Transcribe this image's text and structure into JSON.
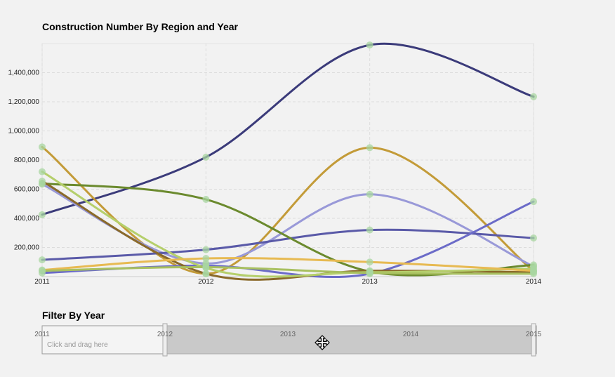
{
  "chart_title": "Construction Number By Region and Year",
  "filter_title": "Filter By Year",
  "filter": {
    "hint": "Click and drag here",
    "ticks": [
      "2011",
      "2012",
      "2013",
      "2014",
      "2015"
    ],
    "selected_range": [
      "2012",
      "2015"
    ]
  },
  "chart_data": {
    "type": "line",
    "title": "Construction Number By Region and Year",
    "xlabel": "",
    "ylabel": "",
    "x": [
      "2011",
      "2012",
      "2013",
      "2014"
    ],
    "ylim": [
      0,
      1600000
    ],
    "y_ticks": [
      200000,
      400000,
      600000,
      800000,
      1000000,
      1200000,
      1400000
    ],
    "y_tick_labels": [
      "200,000",
      "400,000",
      "600,000",
      "800,000",
      "1,000,000",
      "1,200,000",
      "1,400,000"
    ],
    "grid": true,
    "series": [
      {
        "color": "#3b3b7a",
        "values": [
          425000,
          820000,
          1590000,
          1235000
        ]
      },
      {
        "color": "#c39b38",
        "values": [
          890000,
          20000,
          885000,
          40000
        ]
      },
      {
        "color": "#9999d8",
        "values": [
          635000,
          90000,
          565000,
          70000
        ]
      },
      {
        "color": "#5a5aa8",
        "values": [
          115000,
          185000,
          320000,
          265000
        ]
      },
      {
        "color": "#6b6bc8",
        "values": [
          25000,
          75000,
          20000,
          515000
        ]
      },
      {
        "color": "#6b8a2e",
        "values": [
          640000,
          530000,
          35000,
          80000
        ]
      },
      {
        "color": "#8a6a2a",
        "values": [
          655000,
          20000,
          40000,
          30000
        ]
      },
      {
        "color": "#b5cf6b",
        "values": [
          720000,
          60000,
          30000,
          55000
        ]
      },
      {
        "color": "#e7ba52",
        "values": [
          45000,
          125000,
          100000,
          40000
        ]
      },
      {
        "color": "#a8c060",
        "values": [
          40000,
          65000,
          25000,
          20000
        ]
      }
    ]
  }
}
